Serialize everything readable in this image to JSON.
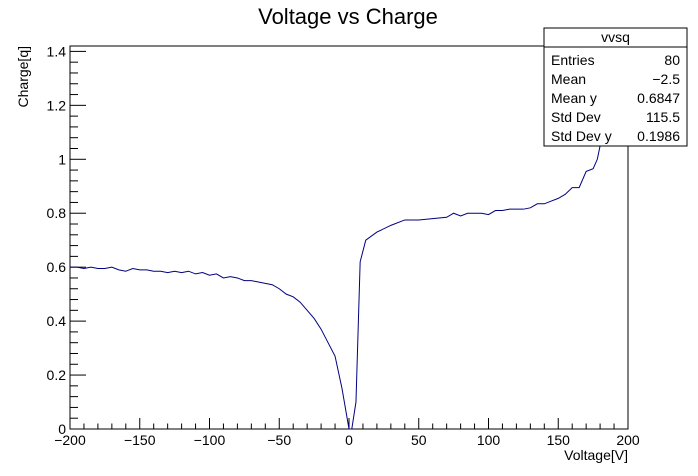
{
  "chart_data": {
    "type": "line",
    "title": "Voltage vs Charge",
    "xlabel": "Voltage[V]",
    "ylabel": "Charge[q]",
    "xlim": [
      -200,
      200
    ],
    "ylim": [
      0,
      1.42
    ],
    "x_ticks": [
      -200,
      -150,
      -100,
      -50,
      0,
      50,
      100,
      150,
      200
    ],
    "x_tick_labels": [
      "−200",
      "−150",
      "−100",
      "−50",
      "0",
      "50",
      "100",
      "150",
      "200"
    ],
    "y_ticks": [
      0,
      0.2,
      0.4,
      0.6,
      0.8,
      1,
      1.2,
      1.4
    ],
    "y_tick_labels": [
      "0",
      "0.2",
      "0.4",
      "0.6",
      "0.8",
      "1",
      "1.2",
      "1.4"
    ],
    "grid": false,
    "line_color": "#000080",
    "series": [
      {
        "x": [
          -200,
          -195,
          -190,
          -185,
          -180,
          -175,
          -170,
          -165,
          -160,
          -155,
          -150,
          -145,
          -140,
          -135,
          -130,
          -125,
          -120,
          -115,
          -110,
          -105,
          -100,
          -95,
          -90,
          -85,
          -80,
          -75,
          -70,
          -65,
          -60,
          -55,
          -50,
          -45,
          -40,
          -35,
          -30,
          -25,
          -20,
          -15,
          -10,
          -5,
          0,
          2,
          5,
          8,
          12,
          20,
          30,
          40,
          50,
          60,
          70,
          75,
          80,
          85,
          90,
          95,
          100,
          105,
          110,
          115,
          120,
          125,
          130,
          135,
          140,
          145,
          150,
          155,
          160,
          165,
          170,
          175,
          178,
          180,
          183,
          186,
          189,
          192,
          195,
          198
        ],
        "y": [
          0.6,
          0.6,
          0.595,
          0.6,
          0.595,
          0.595,
          0.6,
          0.59,
          0.585,
          0.595,
          0.59,
          0.59,
          0.585,
          0.585,
          0.58,
          0.585,
          0.58,
          0.585,
          0.575,
          0.58,
          0.57,
          0.575,
          0.56,
          0.565,
          0.56,
          0.55,
          0.55,
          0.545,
          0.54,
          0.535,
          0.52,
          0.5,
          0.49,
          0.47,
          0.44,
          0.41,
          0.37,
          0.32,
          0.27,
          0.15,
          0.0,
          0.0,
          0.1,
          0.62,
          0.7,
          0.73,
          0.755,
          0.775,
          0.775,
          0.78,
          0.785,
          0.8,
          0.79,
          0.8,
          0.8,
          0.8,
          0.795,
          0.81,
          0.81,
          0.815,
          0.815,
          0.815,
          0.82,
          0.835,
          0.835,
          0.845,
          0.855,
          0.87,
          0.895,
          0.895,
          0.955,
          0.965,
          1.0,
          1.05,
          1.1,
          1.15,
          1.2,
          1.25,
          1.3,
          1.35
        ]
      }
    ]
  },
  "stats_box": {
    "name": "vvsq",
    "rows": [
      {
        "label": "Entries",
        "value": "80"
      },
      {
        "label": "Mean",
        "value": "−2.5"
      },
      {
        "label": "Mean y",
        "value": "0.6847"
      },
      {
        "label": "Std Dev",
        "value": "115.5"
      },
      {
        "label": "Std Dev y",
        "value": "0.1986"
      }
    ]
  }
}
